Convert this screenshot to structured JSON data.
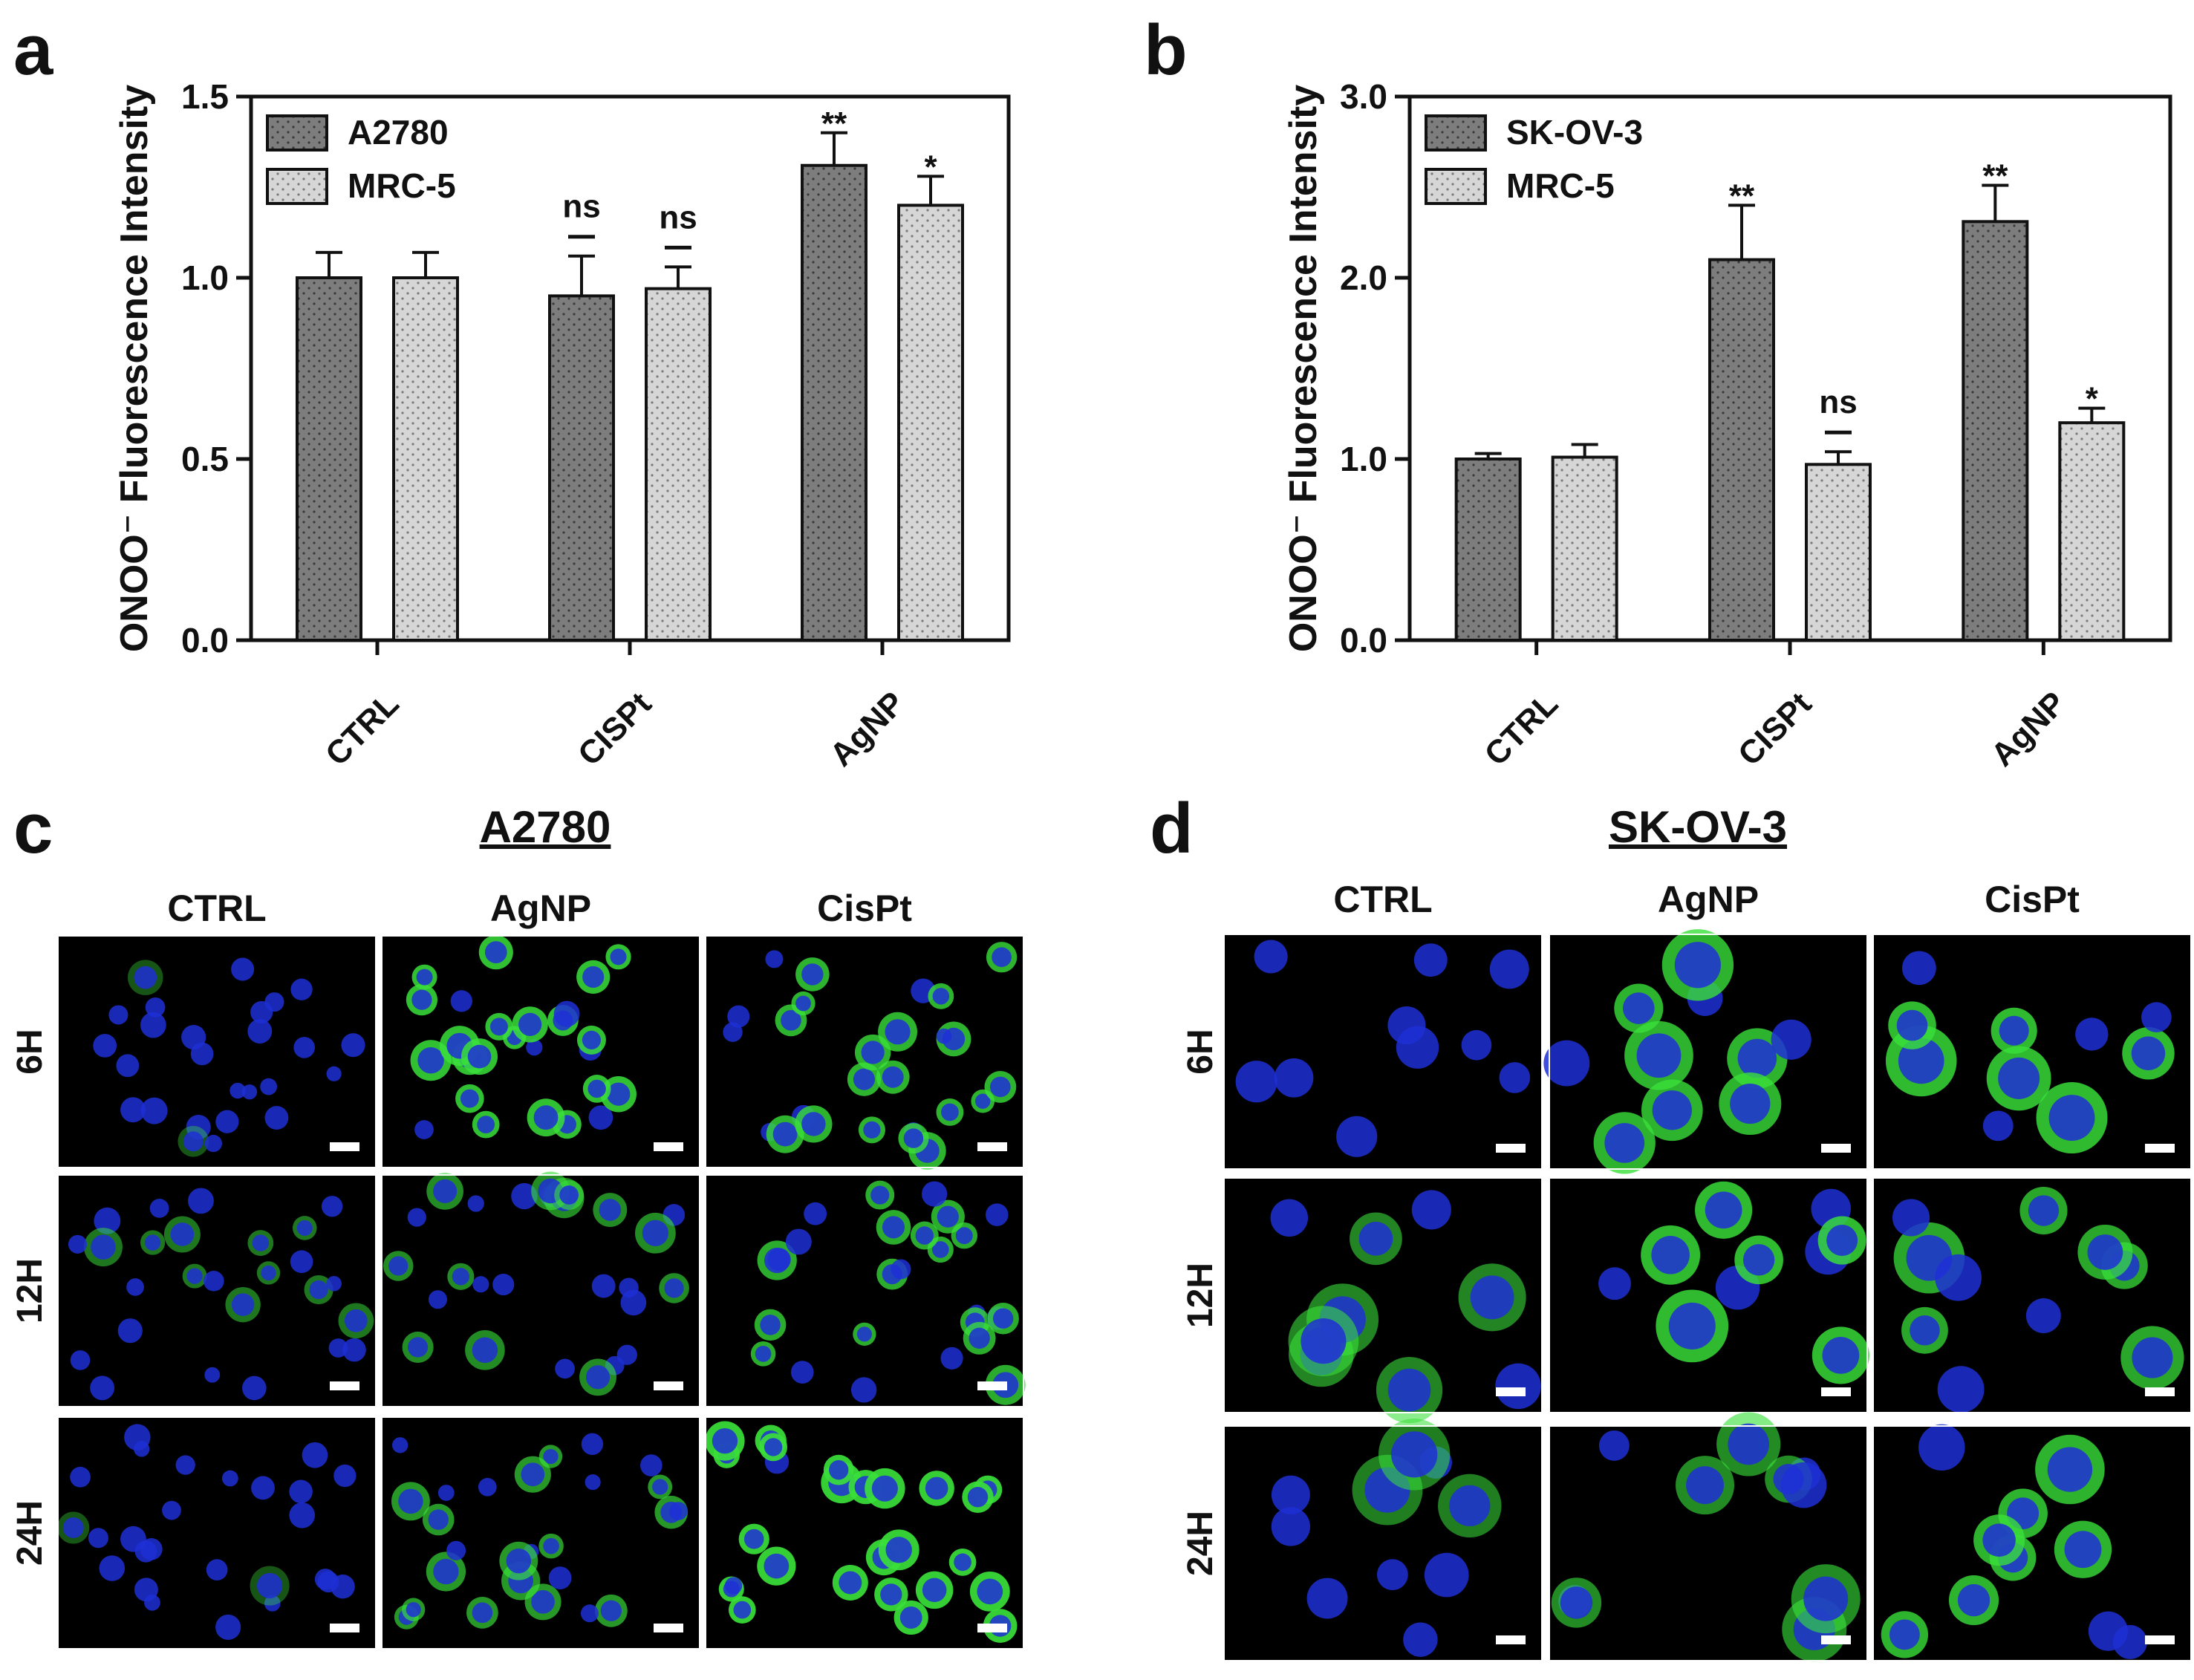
{
  "panels": {
    "a": {
      "letter": "a"
    },
    "b": {
      "letter": "b"
    },
    "c": {
      "letter": "c",
      "title": "A2780"
    },
    "d": {
      "letter": "d",
      "title": "SK-OV-3"
    }
  },
  "chart_data": [
    {
      "panel": "a",
      "type": "bar",
      "title": "",
      "xlabel": "",
      "ylabel": "ONOO⁻ Fluorescence Intensity",
      "ylim": [
        0,
        1.5
      ],
      "yticks": [
        "0.0",
        "0.5",
        "1.0",
        "1.5"
      ],
      "categories": [
        "CTRL",
        "CISPt",
        "AgNP"
      ],
      "series": [
        {
          "name": "A2780",
          "values": [
            1.0,
            0.95,
            1.31
          ],
          "errors": [
            0.07,
            0.11,
            0.09
          ],
          "annotations": [
            "",
            "ns",
            "**"
          ]
        },
        {
          "name": "MRC-5",
          "values": [
            1.0,
            0.97,
            1.2
          ],
          "errors": [
            0.07,
            0.06,
            0.08
          ],
          "annotations": [
            "",
            "ns",
            "*"
          ]
        }
      ],
      "legend": "top-left",
      "grid": false,
      "colors": {
        "series0": "#7d7d7d",
        "series1": "#d6d6d6",
        "dots0": "#3a3a3a",
        "dots1": "#7a7a7a"
      }
    },
    {
      "panel": "b",
      "type": "bar",
      "title": "",
      "xlabel": "",
      "ylabel": "ONOO⁻ Fluorescence Intensity",
      "ylim": [
        0,
        3.0
      ],
      "yticks": [
        "0.0",
        "1.0",
        "2.0",
        "3.0"
      ],
      "categories": [
        "CTRL",
        "CISPt",
        "AgNP"
      ],
      "series": [
        {
          "name": "SK-OV-3",
          "values": [
            1.0,
            2.1,
            2.31
          ],
          "errors": [
            0.03,
            0.3,
            0.2
          ],
          "annotations": [
            "",
            "**",
            "**"
          ]
        },
        {
          "name": "MRC-5",
          "values": [
            1.01,
            0.97,
            1.2
          ],
          "errors": [
            0.07,
            0.07,
            0.08
          ],
          "annotations": [
            "",
            "ns",
            "*"
          ]
        }
      ],
      "legend": "top-left",
      "grid": false,
      "colors": {
        "series0": "#7d7d7d",
        "series1": "#d6d6d6",
        "dots0": "#3a3a3a",
        "dots1": "#7a7a7a"
      }
    }
  ],
  "micrographs": [
    {
      "panel": "c",
      "columns": [
        "CTRL",
        "AgNP",
        "CisPt"
      ],
      "rows": [
        "6H",
        "12H",
        "24H"
      ],
      "green_level": [
        [
          0.05,
          0.85,
          0.75
        ],
        [
          0.3,
          0.45,
          0.7
        ],
        [
          0.05,
          0.55,
          0.95
        ]
      ]
    },
    {
      "panel": "d",
      "columns": [
        "CTRL",
        "AgNP",
        "CisPt"
      ],
      "rows": [
        "6H",
        "12H",
        "24H"
      ],
      "green_level": [
        [
          0.08,
          0.75,
          0.8
        ],
        [
          0.4,
          0.8,
          0.65
        ],
        [
          0.35,
          0.45,
          0.75
        ]
      ]
    }
  ],
  "colors": {
    "nucleus": "#1f2fd6",
    "probe": "#39e03a",
    "background": "#000000",
    "scale_bar": "#ffffff"
  }
}
